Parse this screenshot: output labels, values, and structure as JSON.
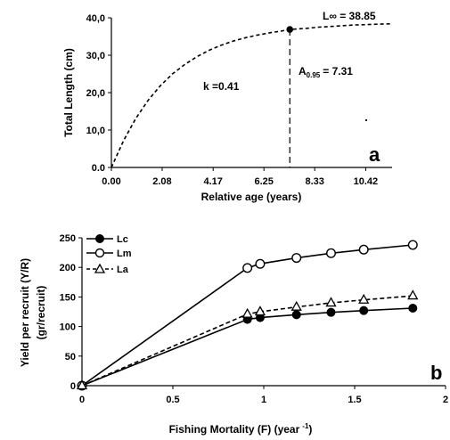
{
  "chart_data": [
    {
      "panel": "a",
      "type": "line",
      "xlabel": "Relative age (years)",
      "ylabel": "Total Length (cm)",
      "xticks": [
        "0.00",
        "2.08",
        "4.17",
        "6.25",
        "8.33",
        "10.42"
      ],
      "yticks": [
        "0.0",
        "10,0",
        "20,0",
        "30,0",
        "40,0"
      ],
      "xlim": [
        0,
        11.5
      ],
      "ylim": [
        0,
        40
      ],
      "Linf": 38.85,
      "k": 0.41,
      "series": [
        {
          "x": [
            0,
            0.5,
            1,
            1.5,
            2,
            2.5,
            3,
            3.5,
            4,
            4.5,
            5,
            5.5,
            6,
            6.5,
            7,
            7.31,
            8,
            8.5,
            9,
            9.5,
            10,
            10.5,
            11,
            11.5
          ],
          "y": [
            0,
            7.2,
            13.1,
            17.9,
            21.8,
            25.0,
            27.5,
            29.6,
            31.3,
            32.7,
            33.8,
            34.7,
            35.4,
            36.0,
            36.5,
            36.9,
            37.2,
            37.5,
            37.7,
            37.9,
            38.1,
            38.2,
            38.3,
            38.4
          ]
        }
      ],
      "marker_point": {
        "x": 7.31,
        "y": 36.9
      },
      "annotations": {
        "linf_text": "L∞ = 38.85",
        "a_prefix": "A",
        "a_sub": "0.95",
        "a_value": "= 7.31",
        "k_text": "k =0.41"
      },
      "letter": "a"
    },
    {
      "panel": "b",
      "type": "line",
      "xlabel_main": "Fishing  Mortality (F) (year",
      "xlabel_sup": "-1",
      "xlabel_end": ")",
      "ylabel_line1": "Yield per recruit (Y/R)",
      "ylabel_line2": "(gr/recruit)",
      "xticks": [
        "0",
        "0.5",
        "1",
        "1.5",
        "2"
      ],
      "yticks": [
        "0",
        "50",
        "100",
        "150",
        "200",
        "250"
      ],
      "xlim": [
        0,
        2
      ],
      "ylim": [
        0,
        250
      ],
      "legend": [
        "Lc",
        "Lm",
        "La"
      ],
      "series": [
        {
          "name": "Lc",
          "marker": "filled-circle",
          "x": [
            0,
            0.91,
            0.98,
            1.18,
            1.37,
            1.55,
            1.82
          ],
          "y": [
            0,
            112,
            115,
            120,
            124,
            127,
            131
          ]
        },
        {
          "name": "Lm",
          "marker": "open-circle",
          "x": [
            0,
            0.91,
            0.98,
            1.18,
            1.37,
            1.55,
            1.82
          ],
          "y": [
            0,
            199,
            206,
            216,
            224,
            230,
            238
          ]
        },
        {
          "name": "La",
          "marker": "open-triangle",
          "x": [
            0,
            0.91,
            0.98,
            1.18,
            1.37,
            1.55,
            1.82
          ],
          "y": [
            0,
            121,
            125,
            133,
            140,
            145,
            152
          ]
        }
      ],
      "letter": "b"
    }
  ]
}
